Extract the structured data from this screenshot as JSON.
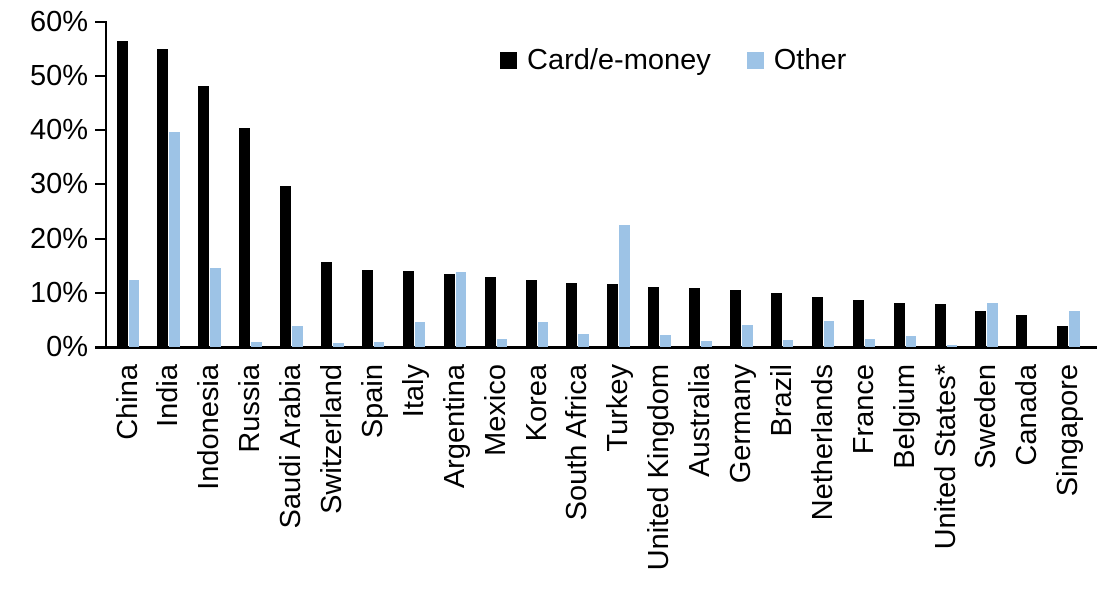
{
  "chart_data": {
    "type": "bar",
    "categories": [
      "China",
      "India",
      "Indonesia",
      "Russia",
      "Saudi Arabia",
      "Switzerland",
      "Spain",
      "Italy",
      "Argentina",
      "Mexico",
      "Korea",
      "South Africa",
      "Turkey",
      "United Kingdom",
      "Australia",
      "Germany",
      "Brazil",
      "Netherlands",
      "France",
      "Belgium",
      "United States*",
      "Sweden",
      "Canada",
      "Singapore"
    ],
    "series": [
      {
        "name": "Card/e-money",
        "color": "#000000",
        "values": [
          56.4,
          55.0,
          48.2,
          40.5,
          29.8,
          15.6,
          14.3,
          14.1,
          13.4,
          12.9,
          12.3,
          11.8,
          11.7,
          11.1,
          10.8,
          10.6,
          10.0,
          9.3,
          8.7,
          8.2,
          7.9,
          6.6,
          5.9,
          3.8
        ]
      },
      {
        "name": "Other",
        "color": "#9DC3E6",
        "values": [
          12.3,
          39.6,
          14.5,
          1.0,
          3.8,
          0.7,
          1.0,
          4.6,
          13.9,
          1.4,
          4.7,
          2.4,
          22.5,
          2.3,
          1.1,
          4.0,
          1.3,
          4.8,
          1.5,
          2.0,
          0.3,
          8.1,
          0.0,
          6.6
        ]
      }
    ],
    "yticks": [
      {
        "value": 0,
        "label": "0%"
      },
      {
        "value": 10,
        "label": "10%"
      },
      {
        "value": 20,
        "label": "20%"
      },
      {
        "value": 30,
        "label": "30%"
      },
      {
        "value": 40,
        "label": "40%"
      },
      {
        "value": 50,
        "label": "50%"
      },
      {
        "value": 60,
        "label": "60%"
      }
    ],
    "ylim": [
      0,
      60
    ],
    "grid": false,
    "legend_position": "top-center"
  }
}
